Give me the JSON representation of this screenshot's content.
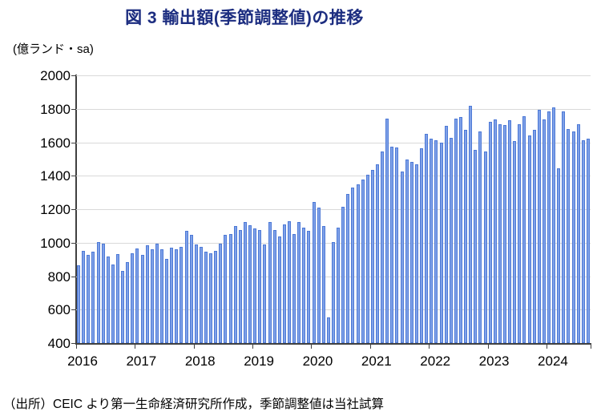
{
  "header": {
    "title": "図 3 輸出額(季節調整値)の推移",
    "unit_label": "(億ランド・sa)"
  },
  "footer": {
    "source_note": "（出所）CEIC より第一生命経済研究所作成，季節調整値は当社試算"
  },
  "chart_data": {
    "type": "bar",
    "title": "図 3 輸出額(季節調整値)の推移",
    "ylabel": "(億ランド・sa)",
    "xlabel": "",
    "ylim": [
      400,
      2000
    ],
    "yticks": [
      400,
      600,
      800,
      1000,
      1200,
      1400,
      1600,
      1800,
      2000
    ],
    "grid": "horizontal",
    "legend": "none",
    "bar_color": "#7fa1e8",
    "bar_border_color": "#4d79d6",
    "x_year_labels": [
      "2016",
      "2017",
      "2018",
      "2019",
      "2020",
      "2021",
      "2022",
      "2023",
      "2024"
    ],
    "period": "monthly, Jan 2016 - Sep 2024",
    "series": [
      {
        "name": "輸出額(季節調整値)",
        "monthly_values_by_year": {
          "2016": [
            865,
            950,
            925,
            945,
            1005,
            995,
            915,
            870,
            930,
            830,
            885,
            935
          ],
          "2017": [
            965,
            925,
            985,
            960,
            995,
            960,
            905,
            970,
            960,
            975,
            1070,
            1045
          ],
          "2018": [
            990,
            975,
            945,
            935,
            950,
            995,
            1045,
            1050,
            1100,
            1075,
            1125,
            1105
          ],
          "2019": [
            1085,
            1075,
            990,
            1125,
            1075,
            1035,
            1110,
            1130,
            1050,
            1125,
            1090,
            1070
          ],
          "2020": [
            1245,
            1210,
            1100,
            555,
            1005,
            1090,
            1215,
            1290,
            1330,
            1350,
            1375,
            1405
          ],
          "2021": [
            1435,
            1470,
            1545,
            1740,
            1575,
            1570,
            1425,
            1495,
            1485,
            1470,
            1565,
            1650
          ],
          "2022": [
            1620,
            1610,
            1600,
            1700,
            1625,
            1740,
            1750,
            1675,
            1820,
            1555,
            1665,
            1545
          ],
          "2023": [
            1720,
            1735,
            1710,
            1705,
            1730,
            1605,
            1710,
            1755,
            1640,
            1675,
            1795,
            1735
          ],
          "2024": [
            1785,
            1810,
            1445,
            1785,
            1680,
            1665,
            1710,
            1610,
            1620
          ]
        }
      }
    ]
  }
}
